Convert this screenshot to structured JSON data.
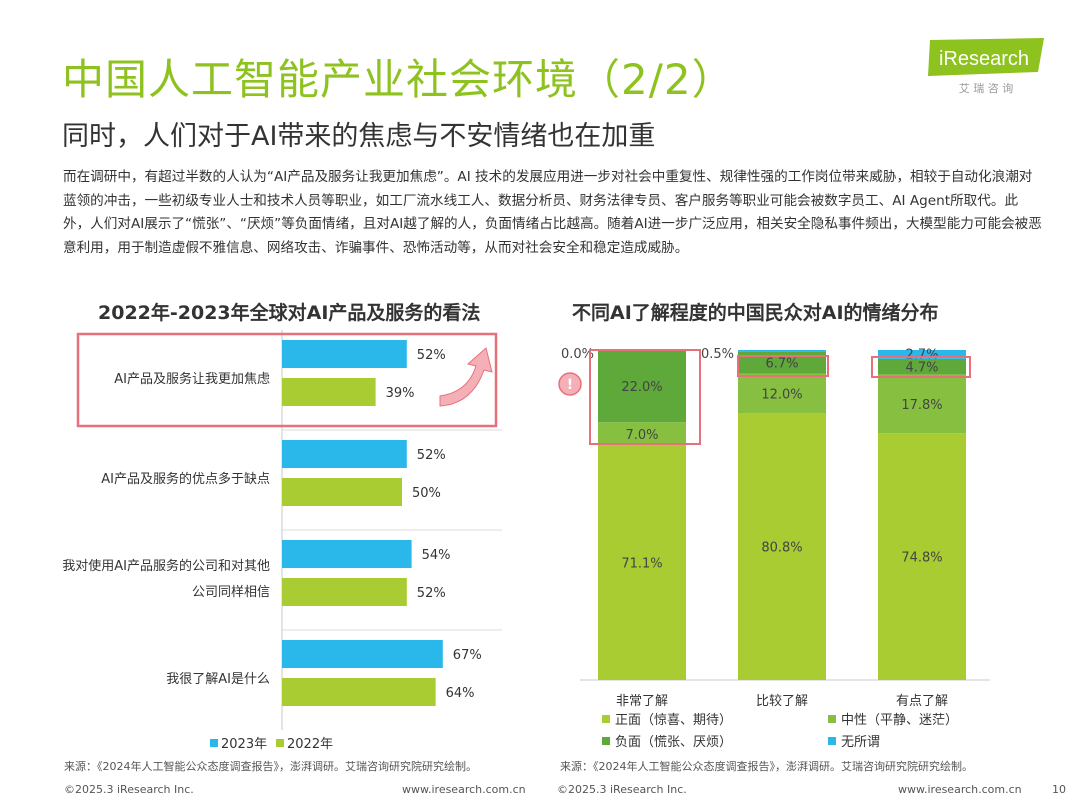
{
  "header": {
    "title": "中国人工智能产业社会环境（2/2）",
    "subtitle": "同时，人们对于AI带来的焦虑与不安情绪也在加重",
    "logo_text": "iResearch",
    "logo_sub": "艾 瑞 咨 询"
  },
  "body_text": "而在调研中，有超过半数的人认为“AI产品及服务让我更加焦虑”。AI 技术的发展应用进一步对社会中重复性、规律性强的工作岗位带来威胁，相较于自动化浪潮对蓝领的冲击，一些初级专业人士和技术人员等职业，如工厂流水线工人、数据分析员、财务法律专员、客户服务等职业可能会被数字员工、AI Agent所取代。此外，人们对AI展示了“慌张”、“厌烦”等负面情绪，且对AI越了解的人，负面情绪占比越高。随着AI进一步广泛应用，相关安全隐私事件频出，大模型能力可能会被恶意利用，用于制造虚假不雅信息、网络攻击、诈骗事件、恐怖活动等，从而对社会安全和稳定造成威胁。",
  "chart_data": [
    {
      "type": "bar",
      "orientation": "horizontal",
      "title": "2022年-2023年全球对AI产品及服务的看法",
      "categories": [
        [
          "AI产品及服务让我更加焦虑"
        ],
        [
          "AI产品及服务的优点多于缺点"
        ],
        [
          "我对使用AI产品服务的公司和对其他",
          "公司同样相信"
        ],
        [
          "我很了解AI是什么"
        ]
      ],
      "series": [
        {
          "name": "2023年",
          "color": "#2ab7ea",
          "values": [
            52,
            52,
            54,
            67
          ],
          "labels": [
            "52%",
            "52%",
            "54%",
            "67%"
          ]
        },
        {
          "name": "2022年",
          "color": "#a8cc32",
          "values": [
            39,
            50,
            52,
            64
          ],
          "labels": [
            "39%",
            "50%",
            "52%",
            "64%"
          ]
        }
      ],
      "highlight": "AI产品及服务让我更加焦虑",
      "legend": "bottom-left",
      "source": "来源：《2024年人工智能公众态度调查报告》，澎湃调研。艾瑞咨询研究院研究绘制。"
    },
    {
      "type": "bar",
      "orientation": "stacked-vertical",
      "title": "不同AI了解程度的中国民众对AI的情绪分布",
      "categories": [
        "非常了解",
        "比较了解",
        "有点了解"
      ],
      "ylim": [
        0,
        100
      ],
      "series": [
        {
          "name": "正面（惊喜、期待）",
          "color": "#a8cc32",
          "values": [
            71.1,
            80.8,
            74.8
          ],
          "labels": [
            "71.1%",
            "80.8%",
            "74.8%"
          ]
        },
        {
          "name": "中性（平静、迷茫）",
          "color": "#87c040",
          "values": [
            7.0,
            12.0,
            17.8
          ],
          "labels": [
            "7.0%",
            "12.0%",
            "17.8%"
          ]
        },
        {
          "name": "负面（慌张、厌烦）",
          "color": "#5fa83a",
          "values": [
            22.0,
            6.7,
            4.7
          ],
          "labels": [
            "22.0%",
            "6.7%",
            "4.7%"
          ]
        },
        {
          "name": "无所谓",
          "color": "#2ab7ea",
          "values": [
            0.0,
            0.5,
            2.7
          ],
          "labels": [
            "0.0%",
            "0.5%",
            "2.7%"
          ]
        }
      ],
      "highlight": "负面（慌张、厌烦）",
      "alert_icon": "!",
      "legend": "bottom",
      "source": "来源：《2024年人工智能公众态度调查报告》，澎湃调研。艾瑞咨询研究院研究绘制。"
    }
  ],
  "footer": {
    "copyright": "©2025.3 iResearch Inc.",
    "website": "www.iresearch.com.cn",
    "page": "10"
  },
  "colors": {
    "brand_green": "#8dc21f",
    "highlight_red": "#e8707a",
    "logo_gray": "#9a9a9a"
  }
}
